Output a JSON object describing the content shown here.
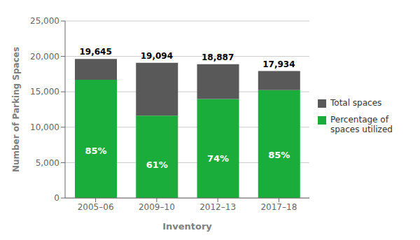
{
  "chart_data": {
    "type": "bar",
    "stacked": true,
    "grid": true,
    "legend": "right",
    "xlabel": "Inventory",
    "ylabel": "Number of Parking Spaces",
    "categories": [
      "2005–06",
      "2009–10",
      "2012–13",
      "2017–18"
    ],
    "series": [
      {
        "name": "Percentage of\nspaces utilized",
        "color": "#1aad3c",
        "values": [
          16698,
          11647,
          13976,
          15244
        ]
      },
      {
        "name": "Total spaces",
        "color": "#595959",
        "values": [
          2947,
          7447,
          4911,
          2690
        ]
      }
    ],
    "percent_labels": [
      "85%",
      "61%",
      "74%",
      "85%"
    ],
    "totals": [
      {
        "value": 19645,
        "label": "19,645"
      },
      {
        "value": 19094,
        "label": "19,094"
      },
      {
        "value": 18887,
        "label": "18,887"
      },
      {
        "value": 17934,
        "label": "17,934"
      }
    ],
    "ylim": [
      0,
      25000
    ],
    "yticks": [
      0,
      {
        "value": 5000,
        "label": "5,000"
      },
      {
        "value": 10000,
        "label": "10,000"
      },
      {
        "value": 15000,
        "label": "15,000"
      },
      {
        "value": 20000,
        "label": "20,000"
      },
      {
        "value": 25000,
        "label": "25,000"
      }
    ]
  }
}
